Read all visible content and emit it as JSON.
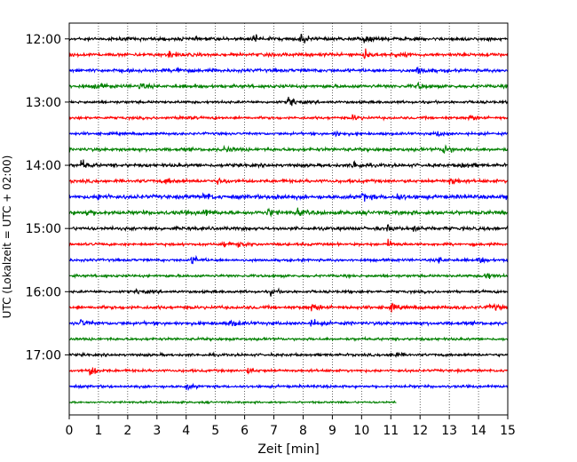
{
  "chart_data": {
    "type": "line",
    "xlabel": "Zeit  [min]",
    "ylabel": "UTC (Lokalzeit = UTC + 02:00)",
    "xlim": [
      0,
      15
    ],
    "x_ticks": [
      "0",
      "1",
      "2",
      "3",
      "4",
      "5",
      "6",
      "7",
      "8",
      "9",
      "10",
      "11",
      "12",
      "13",
      "14",
      "15"
    ],
    "y_ticks": [
      {
        "label": "12:00",
        "hour": 12.0
      },
      {
        "label": "13:00",
        "hour": 13.0
      },
      {
        "label": "14:00",
        "hour": 14.0
      },
      {
        "label": "15:00",
        "hour": 15.0
      },
      {
        "label": "16:00",
        "hour": 16.0
      },
      {
        "label": "17:00",
        "hour": 17.0
      }
    ],
    "ylim_hours": [
      11.75,
      17.95
    ],
    "grid_x": "dotted",
    "trace_colors": [
      "#000000",
      "#ff0000",
      "#0000ff",
      "#008000"
    ],
    "trace_interval_min": 15,
    "traces": [
      {
        "start": "12:00",
        "color": "#000000",
        "amp": 2.5,
        "end": 15,
        "events": [
          [
            6.3,
            6
          ],
          [
            7.9,
            8
          ],
          [
            10.1,
            7
          ]
        ]
      },
      {
        "start": "12:15",
        "color": "#ff0000",
        "amp": 2.5,
        "end": 15,
        "events": [
          [
            3.4,
            5
          ],
          [
            10.1,
            7
          ],
          [
            11.1,
            5
          ]
        ]
      },
      {
        "start": "12:30",
        "color": "#0000ff",
        "amp": 2.5,
        "end": 15,
        "events": [
          [
            3.7,
            5
          ],
          [
            11.9,
            7
          ]
        ]
      },
      {
        "start": "12:45",
        "color": "#008000",
        "amp": 2.5,
        "end": 15,
        "events": [
          [
            0.9,
            4
          ],
          [
            2.4,
            5
          ],
          [
            11.9,
            5
          ]
        ]
      },
      {
        "start": "13:00",
        "color": "#000000",
        "amp": 2.0,
        "end": 15,
        "events": [
          [
            7.5,
            9
          ]
        ]
      },
      {
        "start": "13:15",
        "color": "#ff0000",
        "amp": 2.0,
        "end": 15,
        "events": [
          [
            3.8,
            4
          ],
          [
            9.7,
            5
          ],
          [
            13.7,
            5
          ]
        ]
      },
      {
        "start": "13:30",
        "color": "#0000ff",
        "amp": 2.0,
        "end": 15,
        "events": [
          [
            9.1,
            5
          ],
          [
            12.6,
            5
          ]
        ]
      },
      {
        "start": "13:45",
        "color": "#008000",
        "amp": 2.5,
        "end": 15,
        "events": [
          [
            5.3,
            5
          ],
          [
            12.8,
            9
          ]
        ]
      },
      {
        "start": "14:00",
        "color": "#000000",
        "amp": 2.5,
        "end": 15,
        "events": [
          [
            0.4,
            8
          ],
          [
            9.7,
            8
          ],
          [
            13.4,
            5
          ]
        ]
      },
      {
        "start": "14:15",
        "color": "#ff0000",
        "amp": 2.5,
        "end": 15,
        "events": [
          [
            3.3,
            5
          ],
          [
            5.1,
            5
          ],
          [
            13.0,
            7
          ]
        ]
      },
      {
        "start": "14:30",
        "color": "#0000ff",
        "amp": 3.0,
        "end": 15,
        "events": [
          [
            1.0,
            6
          ],
          [
            4.6,
            6
          ],
          [
            7.0,
            6
          ],
          [
            10.0,
            7
          ],
          [
            11.2,
            6
          ],
          [
            14.9,
            6
          ]
        ]
      },
      {
        "start": "14:45",
        "color": "#008000",
        "amp": 3.0,
        "end": 15,
        "events": [
          [
            0.6,
            5
          ],
          [
            4.6,
            5
          ],
          [
            6.8,
            6
          ],
          [
            7.8,
            5
          ]
        ]
      },
      {
        "start": "15:00",
        "color": "#000000",
        "amp": 2.5,
        "end": 15,
        "events": [
          [
            10.9,
            5
          ],
          [
            11.8,
            6
          ]
        ]
      },
      {
        "start": "15:15",
        "color": "#ff0000",
        "amp": 2.0,
        "end": 15,
        "events": [
          [
            5.3,
            4
          ],
          [
            5.8,
            6
          ],
          [
            10.9,
            6
          ]
        ]
      },
      {
        "start": "15:30",
        "color": "#0000ff",
        "amp": 2.0,
        "end": 15,
        "events": [
          [
            4.2,
            7
          ],
          [
            12.6,
            5
          ],
          [
            14.0,
            5
          ]
        ]
      },
      {
        "start": "15:45",
        "color": "#008000",
        "amp": 2.0,
        "end": 15,
        "events": [
          [
            14.2,
            9
          ]
        ]
      },
      {
        "start": "16:00",
        "color": "#000000",
        "amp": 2.0,
        "end": 15,
        "events": [
          [
            2.3,
            4
          ],
          [
            6.9,
            5
          ]
        ]
      },
      {
        "start": "16:15",
        "color": "#ff0000",
        "amp": 2.5,
        "end": 15,
        "events": [
          [
            8.3,
            7
          ],
          [
            11.0,
            5
          ],
          [
            14.4,
            7
          ]
        ]
      },
      {
        "start": "16:30",
        "color": "#0000ff",
        "amp": 2.5,
        "end": 15,
        "events": [
          [
            0.4,
            6
          ],
          [
            5.5,
            6
          ],
          [
            8.3,
            6
          ]
        ]
      },
      {
        "start": "16:45",
        "color": "#008000",
        "amp": 2.0,
        "end": 15,
        "events": []
      },
      {
        "start": "17:00",
        "color": "#000000",
        "amp": 2.0,
        "end": 15,
        "events": [
          [
            11.0,
            7
          ]
        ]
      },
      {
        "start": "17:15",
        "color": "#ff0000",
        "amp": 2.0,
        "end": 15,
        "events": [
          [
            0.7,
            9
          ],
          [
            6.1,
            4
          ]
        ]
      },
      {
        "start": "17:30",
        "color": "#0000ff",
        "amp": 2.0,
        "end": 15,
        "events": [
          [
            4.0,
            5
          ]
        ]
      },
      {
        "start": "17:45",
        "color": "#008000",
        "amp": 1.5,
        "end": 11.2,
        "events": []
      }
    ]
  }
}
